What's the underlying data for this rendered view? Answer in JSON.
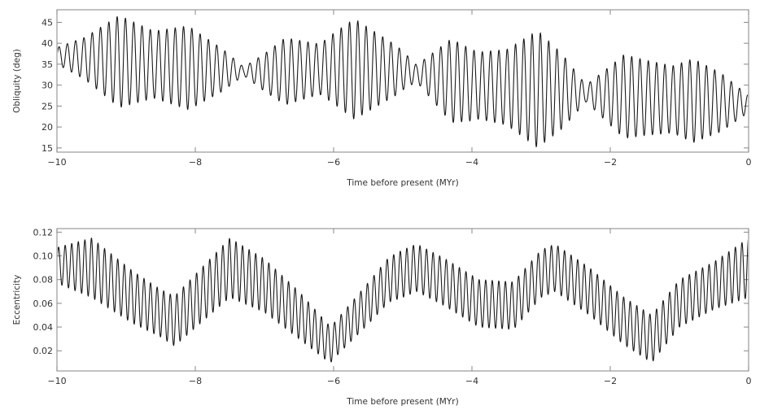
{
  "chart_data": [
    {
      "type": "line",
      "id": "obliquity",
      "xlabel": "Time before present (MYr)",
      "ylabel": "Obliquity (deg)",
      "xlim": [
        -10,
        0
      ],
      "ylim": [
        14,
        48
      ],
      "xticks": [
        -10,
        -8,
        -6,
        -4,
        -2,
        0
      ],
      "yticks": [
        15,
        20,
        25,
        30,
        35,
        40,
        45
      ],
      "series": [
        {
          "model": "oscillating",
          "color": "#1a1a1a",
          "period": 0.12,
          "center": [
            [
              -10,
              37
            ],
            [
              -9,
              35.5
            ],
            [
              -8,
              34
            ],
            [
              -7,
              33
            ],
            [
              -6,
              34
            ],
            [
              -5,
              33.5
            ],
            [
              -4,
              30
            ],
            [
              -3,
              29
            ],
            [
              -2,
              27.5
            ],
            [
              -1,
              26.5
            ],
            [
              0,
              25.5
            ]
          ],
          "amplitude": [
            [
              -10,
              2
            ],
            [
              -9.6,
              5
            ],
            [
              -9.1,
              11
            ],
            [
              -8.6,
              8
            ],
            [
              -8.1,
              10
            ],
            [
              -7.6,
              5
            ],
            [
              -7.3,
              1
            ],
            [
              -6.7,
              8
            ],
            [
              -6.2,
              6
            ],
            [
              -5.7,
              12
            ],
            [
              -5.1,
              6
            ],
            [
              -4.8,
              2
            ],
            [
              -4.3,
              10
            ],
            [
              -3.9,
              8
            ],
            [
              -3.5,
              9
            ],
            [
              -3.05,
              14
            ],
            [
              -2.7,
              9
            ],
            [
              -2.35,
              2
            ],
            [
              -1.8,
              10
            ],
            [
              -1.5,
              9
            ],
            [
              -1.1,
              8
            ],
            [
              -0.8,
              10
            ],
            [
              -0.4,
              7
            ],
            [
              0,
              2
            ]
          ]
        }
      ]
    },
    {
      "type": "line",
      "id": "eccentricity",
      "xlabel": "Time before present (MYr)",
      "ylabel": "Eccentricity",
      "xlim": [
        -10,
        0
      ],
      "ylim": [
        0.003,
        0.123
      ],
      "xticks": [
        -10,
        -8,
        -6,
        -4,
        -2,
        0
      ],
      "yticks": [
        "0.02",
        "0.04",
        "0.06",
        "0.08",
        "0.10",
        "0.12"
      ],
      "series": [
        {
          "model": "oscillating",
          "color": "#1a1a1a",
          "period": 0.095,
          "center": [
            [
              -10,
              0.092
            ],
            [
              -9.5,
              0.09
            ],
            [
              -8.9,
              0.065
            ],
            [
              -8.3,
              0.045
            ],
            [
              -7.5,
              0.09
            ],
            [
              -7,
              0.075
            ],
            [
              -6.5,
              0.05
            ],
            [
              -6.05,
              0.025
            ],
            [
              -5.5,
              0.06
            ],
            [
              -5.2,
              0.08
            ],
            [
              -4.8,
              0.09
            ],
            [
              -4.4,
              0.078
            ],
            [
              -3.9,
              0.06
            ],
            [
              -3.4,
              0.058
            ],
            [
              -3,
              0.085
            ],
            [
              -2.8,
              0.09
            ],
            [
              -2.3,
              0.07
            ],
            [
              -1.8,
              0.045
            ],
            [
              -1.4,
              0.03
            ],
            [
              -1,
              0.06
            ],
            [
              -0.5,
              0.075
            ],
            [
              0,
              0.09
            ]
          ],
          "amplitude": [
            [
              -10,
              0.015
            ],
            [
              -9.5,
              0.025
            ],
            [
              -8.5,
              0.02
            ],
            [
              -7.5,
              0.025
            ],
            [
              -6.5,
              0.02
            ],
            [
              -6,
              0.015
            ],
            [
              -5,
              0.02
            ],
            [
              -4,
              0.02
            ],
            [
              -3,
              0.02
            ],
            [
              -2,
              0.02
            ],
            [
              -1.4,
              0.02
            ],
            [
              -0.5,
              0.02
            ],
            [
              0,
              0.025
            ]
          ]
        }
      ]
    }
  ]
}
